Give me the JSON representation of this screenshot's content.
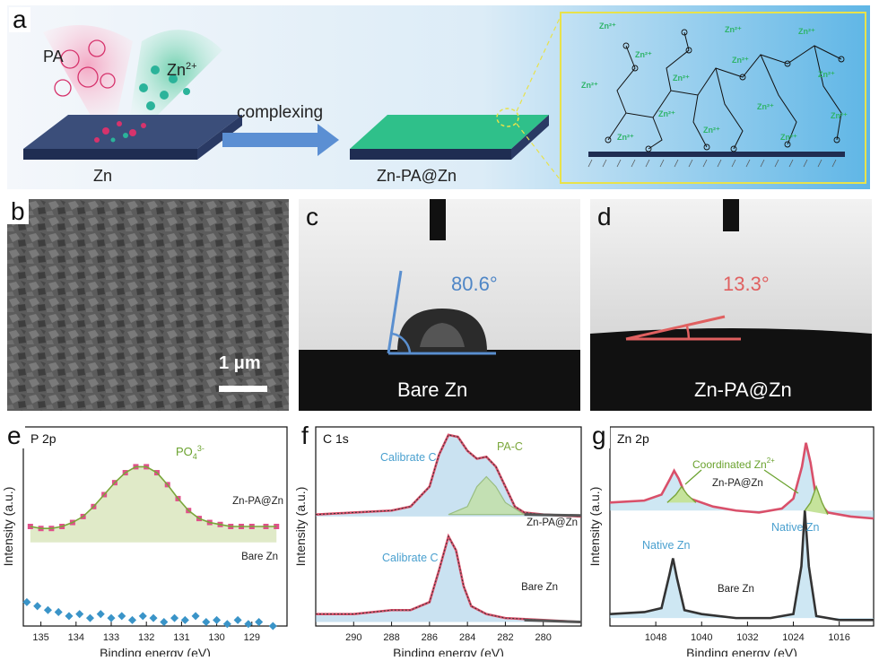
{
  "panel_a": {
    "letter": "a",
    "pa_label": "PA",
    "zn2_label": "Zn",
    "zn2_sup": "2+",
    "zn_label": "Zn",
    "arrow_label": "complexing",
    "product_label": "Zn-PA@Zn",
    "ion_label": "Zn²⁺"
  },
  "panel_b": {
    "letter": "b",
    "scale_label": "1 μm"
  },
  "panel_c": {
    "letter": "c",
    "angle": "80.6°",
    "sample": "Bare Zn",
    "angle_color": "#4f86c6"
  },
  "panel_d": {
    "letter": "d",
    "angle": "13.3°",
    "sample": "Zn-PA@Zn",
    "angle_color": "#e06060"
  },
  "chart_data": [
    {
      "panel": "e",
      "type": "scatter",
      "title": "P 2p",
      "xlabel": "Binding energy (eV)",
      "ylabel": "Intensity (a.u.)",
      "xlim": [
        135.5,
        128
      ],
      "x_reversed": true,
      "xticks": [
        135,
        134,
        133,
        132,
        131,
        130,
        129
      ],
      "annotation": "PO",
      "annotation_sub": "4",
      "annotation_sup": "3-",
      "series": [
        {
          "name": "Zn-PA@Zn",
          "color": "#e0508a",
          "points": [
            [
              135.3,
              0.5
            ],
            [
              135.0,
              0.49
            ],
            [
              134.7,
              0.49
            ],
            [
              134.4,
              0.5
            ],
            [
              134.1,
              0.52
            ],
            [
              133.8,
              0.55
            ],
            [
              133.5,
              0.6
            ],
            [
              133.2,
              0.66
            ],
            [
              132.9,
              0.72
            ],
            [
              132.6,
              0.77
            ],
            [
              132.3,
              0.8
            ],
            [
              132.0,
              0.8
            ],
            [
              131.7,
              0.77
            ],
            [
              131.4,
              0.71
            ],
            [
              131.1,
              0.64
            ],
            [
              130.8,
              0.58
            ],
            [
              130.5,
              0.54
            ],
            [
              130.2,
              0.52
            ],
            [
              129.9,
              0.51
            ],
            [
              129.6,
              0.5
            ],
            [
              129.3,
              0.5
            ],
            [
              129.0,
              0.5
            ],
            [
              128.6,
              0.5
            ],
            [
              128.3,
              0.5
            ]
          ]
        },
        {
          "name": "Bare Zn",
          "color": "#3a94c8",
          "points": [
            [
              135.4,
              0.12
            ],
            [
              135.1,
              0.1
            ],
            [
              134.8,
              0.08
            ],
            [
              134.5,
              0.07
            ],
            [
              134.2,
              0.05
            ],
            [
              133.9,
              0.06
            ],
            [
              133.6,
              0.04
            ],
            [
              133.3,
              0.06
            ],
            [
              133.0,
              0.04
            ],
            [
              132.7,
              0.05
            ],
            [
              132.4,
              0.03
            ],
            [
              132.1,
              0.05
            ],
            [
              131.8,
              0.04
            ],
            [
              131.5,
              0.02
            ],
            [
              131.2,
              0.04
            ],
            [
              130.9,
              0.03
            ],
            [
              130.6,
              0.05
            ],
            [
              130.3,
              0.02
            ],
            [
              130.0,
              0.03
            ],
            [
              129.7,
              0.01
            ],
            [
              129.4,
              0.03
            ],
            [
              129.1,
              0.01
            ],
            [
              128.8,
              0.02
            ],
            [
              128.4,
              0.0
            ]
          ]
        }
      ]
    },
    {
      "panel": "f",
      "type": "line",
      "title": "C 1s",
      "xlabel": "Binding energy (eV)",
      "ylabel": "Intensity (a.u.)",
      "xlim": [
        292,
        278
      ],
      "x_reversed": true,
      "xticks": [
        290,
        288,
        286,
        284,
        282,
        280
      ],
      "labels": [
        "Calibrate C",
        "PA-C",
        "Zn-PA@Zn",
        "Calibrate C",
        "Bare Zn"
      ],
      "series": [
        {
          "name": "Zn-PA@Zn",
          "color": "#d9506a",
          "points": [
            [
              292,
              0.56
            ],
            [
              290,
              0.57
            ],
            [
              288,
              0.58
            ],
            [
              287,
              0.6
            ],
            [
              286,
              0.7
            ],
            [
              285.5,
              0.86
            ],
            [
              285,
              0.96
            ],
            [
              284.5,
              0.95
            ],
            [
              284,
              0.88
            ],
            [
              283.5,
              0.84
            ],
            [
              283,
              0.85
            ],
            [
              282.5,
              0.8
            ],
            [
              282,
              0.7
            ],
            [
              281.5,
              0.6
            ],
            [
              281,
              0.57
            ],
            [
              280,
              0.56
            ],
            [
              278,
              0.55
            ]
          ]
        },
        {
          "name": "Bare Zn",
          "color": "#d9506a",
          "points": [
            [
              292,
              0.06
            ],
            [
              290,
              0.06
            ],
            [
              288,
              0.08
            ],
            [
              287,
              0.08
            ],
            [
              286,
              0.12
            ],
            [
              285.5,
              0.28
            ],
            [
              285,
              0.45
            ],
            [
              284.6,
              0.38
            ],
            [
              284.2,
              0.2
            ],
            [
              283.8,
              0.1
            ],
            [
              283,
              0.06
            ],
            [
              282,
              0.04
            ],
            [
              280,
              0.03
            ],
            [
              278,
              0.02
            ]
          ]
        }
      ]
    },
    {
      "panel": "g",
      "type": "line",
      "title": "Zn 2p",
      "xlabel": "Binding energy (eV)",
      "ylabel": "Intensity (a.u.)",
      "xlim": [
        1056,
        1010
      ],
      "x_reversed": true,
      "xticks": [
        1048,
        1040,
        1032,
        1024,
        1016
      ],
      "labels": [
        "Coordinated Zn",
        "Zn-PA@Zn",
        "Native Zn",
        "Native Zn",
        "Bare Zn"
      ],
      "label_sup": "2+",
      "series": [
        {
          "name": "Zn-PA@Zn",
          "color": "#d9506a",
          "points": [
            [
              1056,
              0.62
            ],
            [
              1050,
              0.63
            ],
            [
              1047,
              0.66
            ],
            [
              1045.5,
              0.74
            ],
            [
              1044.8,
              0.78
            ],
            [
              1044,
              0.74
            ],
            [
              1043,
              0.67
            ],
            [
              1042,
              0.64
            ],
            [
              1038,
              0.6
            ],
            [
              1034,
              0.58
            ],
            [
              1030,
              0.57
            ],
            [
              1026,
              0.59
            ],
            [
              1024,
              0.64
            ],
            [
              1022.5,
              0.8
            ],
            [
              1021.8,
              0.92
            ],
            [
              1021,
              0.82
            ],
            [
              1020,
              0.64
            ],
            [
              1018,
              0.57
            ],
            [
              1014,
              0.55
            ],
            [
              1010,
              0.54
            ]
          ]
        },
        {
          "name": "Bare Zn",
          "color": "#3a94c8",
          "points": [
            [
              1056,
              0.06
            ],
            [
              1050,
              0.07
            ],
            [
              1047,
              0.09
            ],
            [
              1045.6,
              0.26
            ],
            [
              1045.0,
              0.34
            ],
            [
              1044.3,
              0.24
            ],
            [
              1043,
              0.08
            ],
            [
              1040,
              0.06
            ],
            [
              1034,
              0.04
            ],
            [
              1028,
              0.04
            ],
            [
              1024,
              0.06
            ],
            [
              1022.6,
              0.3
            ],
            [
              1022.0,
              0.58
            ],
            [
              1021.3,
              0.3
            ],
            [
              1020,
              0.05
            ],
            [
              1016,
              0.03
            ],
            [
              1010,
              0.03
            ]
          ]
        }
      ]
    }
  ]
}
